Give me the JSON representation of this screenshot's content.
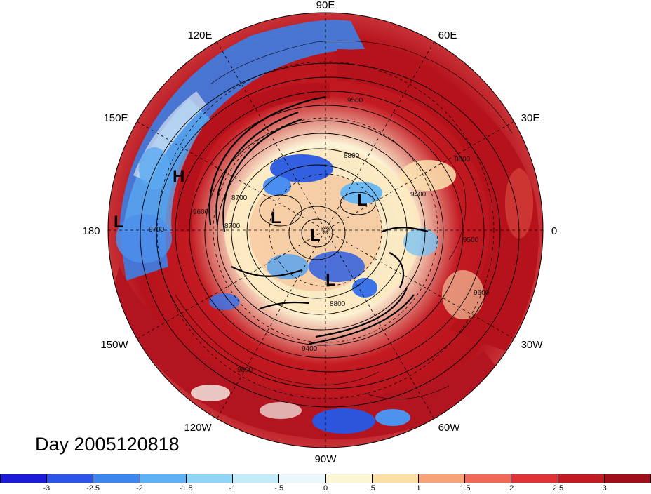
{
  "map": {
    "projection": "north-polar-stereographic",
    "longitude_labels": {
      "n": "90E",
      "ne1": "60E",
      "ne2": "30E",
      "e": "0",
      "se1": "30W",
      "se2": "60W",
      "s": "90W",
      "sw1": "120W",
      "sw2": "150W",
      "w": "180",
      "nw1": "150E",
      "nw2": "120E"
    },
    "pressure_systems": [
      {
        "type": "H",
        "label": "H"
      },
      {
        "type": "L",
        "label": "L"
      },
      {
        "type": "L",
        "label": "L"
      },
      {
        "type": "L",
        "label": "L"
      },
      {
        "type": "L",
        "label": "L"
      },
      {
        "type": "L",
        "label": "L"
      }
    ],
    "contour_labels": [
      "9500",
      "9600",
      "8800",
      "8700",
      "9700",
      "9400",
      "9800",
      "8800",
      "8700",
      "9400",
      "9500",
      "9600",
      "9800"
    ],
    "colors": {
      "strong_negative": "#2b2bd8",
      "strong_positive": "#b5121b",
      "neutral": "#fff6d8"
    }
  },
  "date_label": "Day 2005120818",
  "colorbar": {
    "ticks": [
      "-3",
      "-2.5",
      "-2",
      "-1.5",
      "-1",
      "-.5",
      "0",
      ".5",
      "1",
      "1.5",
      "2",
      "2.5",
      "3"
    ],
    "colors": [
      "#1c1cd6",
      "#2a55e6",
      "#3d86ee",
      "#5cb0f4",
      "#8fd6f6",
      "#c3ecf8",
      "#eaf8fb",
      "#fdf6d2",
      "#fbe0a6",
      "#f6a37a",
      "#ee6a57",
      "#e03338",
      "#c01a22",
      "#9e0f1a"
    ]
  }
}
